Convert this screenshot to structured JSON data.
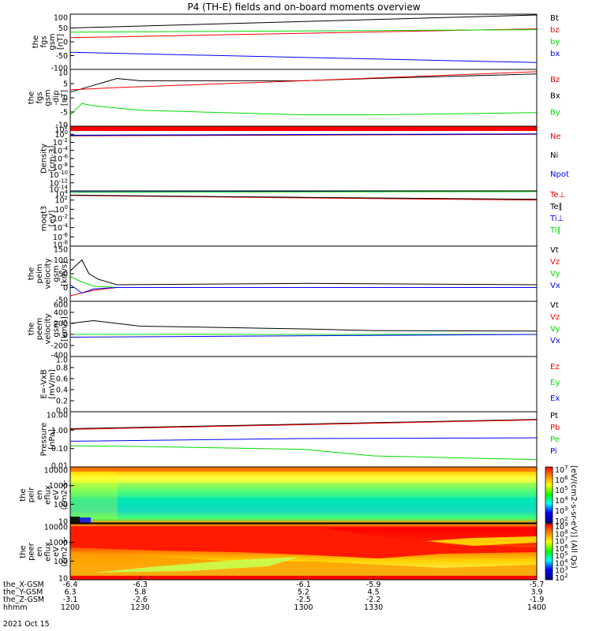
{
  "title": "P4 (TH-E) fields and on-board moments overview",
  "colors": {
    "black": "#000000",
    "red": "#ff0000",
    "green": "#00dd00",
    "blue": "#0000ff"
  },
  "chart_data": [
    {
      "type": "line",
      "ylabel": [
        "the",
        "fgs",
        "gsm",
        "[nT]"
      ],
      "ylim": [
        -100,
        100
      ],
      "yticks": [
        "100",
        "50",
        "0",
        "-50",
        "-100"
      ],
      "legend": [
        {
          "name": "Bt",
          "color": "black"
        },
        {
          "name": "bz",
          "color": "red"
        },
        {
          "name": "by",
          "color": "green"
        },
        {
          "name": "bx",
          "color": "blue"
        }
      ],
      "series": [
        {
          "name": "Bt",
          "color": "black",
          "x": [
            1200,
            1400
          ],
          "values": [
            50,
            97
          ]
        },
        {
          "name": "bz",
          "color": "red",
          "x": [
            1200,
            1400
          ],
          "values": [
            15,
            47
          ]
        },
        {
          "name": "by",
          "color": "green",
          "x": [
            1200,
            1400
          ],
          "values": [
            35,
            44
          ]
        },
        {
          "name": "bx",
          "color": "blue",
          "x": [
            1200,
            1400
          ],
          "values": [
            -38,
            -75
          ]
        }
      ]
    },
    {
      "type": "line",
      "ylabel": [
        "the",
        "fgs",
        "gsm",
        "-dip",
        "[nT]"
      ],
      "ylim": [
        -15,
        10
      ],
      "yticks": [
        "10",
        "5",
        "0",
        "-5",
        "-10"
      ],
      "legend": [
        {
          "name": "Bz",
          "color": "red",
          "y": -8
        },
        {
          "name": "Bx",
          "color": "black",
          "y": -5
        },
        {
          "name": "By",
          "color": "green",
          "y": -90
        }
      ],
      "series": [
        {
          "name": "Bx",
          "color": "black",
          "x": [
            1200,
            1210,
            1220,
            1230,
            1300,
            1330,
            1400
          ],
          "values": [
            0,
            3,
            6,
            5,
            5,
            6,
            8
          ]
        },
        {
          "name": "Bz",
          "color": "red",
          "x": [
            1200,
            1220,
            1300,
            1400
          ],
          "values": [
            1,
            2,
            5,
            9
          ]
        },
        {
          "name": "By",
          "color": "green",
          "x": [
            1200,
            1205,
            1210,
            1220,
            1230,
            1300,
            1330,
            1400
          ],
          "values": [
            -10,
            -5,
            -6,
            -7,
            -8,
            -10,
            -10,
            -9
          ]
        }
      ]
    },
    {
      "type": "line",
      "ylabel": [
        "Density",
        "[cm-3]"
      ],
      "ylim": [
        1e-14,
        100
      ],
      "log": true,
      "yticks": [
        "10^2",
        "10^0",
        "10^-2",
        "10^-4",
        "10^-6",
        "10^-8",
        "10^-10",
        "10^-12",
        "10^-14"
      ],
      "legend": [
        {
          "name": "Ne",
          "color": "red"
        },
        {
          "name": "Ni",
          "color": "black"
        },
        {
          "name": "Npot",
          "color": "blue"
        }
      ],
      "series": [
        {
          "name": "Ne",
          "color": "red",
          "x": [
            1200,
            1400
          ],
          "values": [
            0.4,
            1
          ]
        },
        {
          "name": "Ni",
          "color": "black",
          "x": [
            1200,
            1400
          ],
          "values": [
            0.5,
            1.1
          ]
        },
        {
          "name": "Npot",
          "color": "blue",
          "x": [
            1200,
            1400
          ],
          "values": [
            0.6,
            1.3
          ]
        }
      ]
    },
    {
      "type": "line",
      "ylabel": [
        "moqt3",
        "[eV]"
      ],
      "ylim": [
        1e-08,
        10000
      ],
      "log": true,
      "yticks": [
        "10^4",
        "10^2",
        "10^0",
        "10^-2",
        "10^-4",
        "10^-6",
        "10^-8"
      ],
      "legend": [
        {
          "name": "Te⊥",
          "color": "red"
        },
        {
          "name": "Te∥",
          "color": "black"
        },
        {
          "name": "Ti⊥",
          "color": "blue"
        },
        {
          "name": "Ti∥",
          "color": "green"
        }
      ],
      "series": [
        {
          "name": "Te⊥",
          "color": "red",
          "x": [
            1200,
            1300,
            1400
          ],
          "values": [
            1000,
            300,
            100
          ]
        },
        {
          "name": "Te∥",
          "color": "black",
          "x": [
            1200,
            1300,
            1400
          ],
          "values": [
            1200,
            400,
            150
          ]
        },
        {
          "name": "Ti⊥",
          "color": "blue",
          "x": [
            1200,
            1400
          ],
          "values": [
            6000,
            8000
          ]
        },
        {
          "name": "Ti∥",
          "color": "green",
          "x": [
            1200,
            1400
          ],
          "values": [
            5000,
            7000
          ]
        }
      ]
    },
    {
      "type": "line",
      "ylabel": [
        "the",
        "peim",
        "velocity",
        "gsm",
        "[km/s]"
      ],
      "ylim": [
        -50,
        150
      ],
      "yticks": [
        "150",
        "100",
        "50",
        "0",
        "-50"
      ],
      "legend": [
        {
          "name": "Vt",
          "color": "black"
        },
        {
          "name": "Vz",
          "color": "red"
        },
        {
          "name": "Vy",
          "color": "green"
        },
        {
          "name": "Vx",
          "color": "blue"
        }
      ],
      "series": [
        {
          "name": "Vt",
          "color": "black",
          "x": [
            1200,
            1205,
            1208,
            1212,
            1220,
            1300,
            1400
          ],
          "values": [
            60,
            100,
            50,
            30,
            10,
            15,
            10
          ]
        },
        {
          "name": "Vz",
          "color": "red",
          "x": [
            1200,
            1205,
            1210,
            1220,
            1400
          ],
          "values": [
            -30,
            -20,
            -10,
            0,
            0
          ]
        },
        {
          "name": "Vy",
          "color": "green",
          "x": [
            1200,
            1205,
            1210,
            1220,
            1400
          ],
          "values": [
            40,
            20,
            5,
            0,
            0
          ]
        },
        {
          "name": "Vx",
          "color": "blue",
          "x": [
            1200,
            1205,
            1210,
            1220,
            1400
          ],
          "values": [
            10,
            -20,
            -5,
            0,
            0
          ]
        }
      ]
    },
    {
      "type": "line",
      "ylabel": [
        "the",
        "peem",
        "velocity",
        "gsm",
        "[km/s]"
      ],
      "ylim": [
        -400,
        600
      ],
      "yticks": [
        "600",
        "400",
        "200",
        "0",
        "-200",
        "-400"
      ],
      "legend": [
        {
          "name": "Vt",
          "color": "black"
        },
        {
          "name": "Vz",
          "color": "red"
        },
        {
          "name": "Vy",
          "color": "green"
        },
        {
          "name": "Vx",
          "color": "blue"
        }
      ],
      "series": [
        {
          "name": "Vt",
          "color": "black",
          "x": [
            1200,
            1210,
            1230,
            1300,
            1330,
            1400
          ],
          "values": [
            200,
            250,
            150,
            100,
            70,
            60
          ]
        },
        {
          "name": "Vz",
          "color": "red",
          "x": [
            1200,
            1400
          ],
          "values": [
            0,
            0
          ]
        },
        {
          "name": "Vy",
          "color": "green",
          "x": [
            1200,
            1400
          ],
          "values": [
            0,
            0
          ]
        },
        {
          "name": "Vx",
          "color": "blue",
          "x": [
            1200,
            1400
          ],
          "values": [
            -50,
            0
          ]
        }
      ]
    },
    {
      "type": "line",
      "ylabel": [
        "E=-VxB",
        "[mV/m]"
      ],
      "ylim": [
        0,
        1
      ],
      "yticks": [
        "1.0",
        "0.8",
        "0.6",
        "0.4",
        "0.2",
        "0.0"
      ],
      "legend": [
        {
          "name": "Ez",
          "color": "red"
        },
        {
          "name": "Ey",
          "color": "green"
        },
        {
          "name": "Ex",
          "color": "blue"
        }
      ],
      "series": []
    },
    {
      "type": "line",
      "ylabel": [
        "Pressure",
        "[nPa]"
      ],
      "ylim": [
        0.01,
        10
      ],
      "log": true,
      "yticks": [
        "10.00",
        "1.00",
        "0.10",
        "0.01"
      ],
      "legend": [
        {
          "name": "Pt",
          "color": "black"
        },
        {
          "name": "Pb",
          "color": "red"
        },
        {
          "name": "Pe",
          "color": "green"
        },
        {
          "name": "Pi",
          "color": "blue"
        }
      ],
      "series": [
        {
          "name": "Pt",
          "color": "black",
          "x": [
            1200,
            1400
          ],
          "values": [
            1.2,
            3.8
          ]
        },
        {
          "name": "Pb",
          "color": "red",
          "x": [
            1200,
            1400
          ],
          "values": [
            1.1,
            3.6
          ]
        },
        {
          "name": "Pi",
          "color": "blue",
          "x": [
            1200,
            1300,
            1400
          ],
          "values": [
            0.25,
            0.35,
            0.38
          ]
        },
        {
          "name": "Pe",
          "color": "green",
          "x": [
            1200,
            1230,
            1300,
            1330,
            1400
          ],
          "values": [
            0.14,
            0.13,
            0.09,
            0.04,
            0.025
          ]
        }
      ]
    },
    {
      "type": "heatmap",
      "ylabel": [
        "the",
        "peir",
        "en",
        "eflux",
        "eV",
        "(cm2-s-",
        "sr-eV)"
      ],
      "ylim": [
        5,
        30000
      ],
      "log": true,
      "yticks": [
        "10000",
        "1000",
        "100",
        "10"
      ],
      "colorbar": [
        "10^7",
        "10^6",
        "10^5",
        "10^4",
        "10^3",
        "10^2"
      ],
      "colorbar_label": "[eV/(cm2-s-sr-eV)] (All Qs)"
    },
    {
      "type": "heatmap",
      "ylabel": [
        "the",
        "peer",
        "en",
        "eflux",
        "eV",
        "(cm2-s-",
        "sr-eV)"
      ],
      "ylim": [
        5,
        30000
      ],
      "log": true,
      "yticks": [
        "10000",
        "1000",
        "100",
        "10"
      ],
      "colorbar": [
        "10^9",
        "10^8",
        "10^7",
        "10^6",
        "10^5",
        "10^4",
        "10^3",
        "10^2"
      ],
      "colorbar_label": "[eV/(cm2-s-sr-eV)]"
    }
  ],
  "xaxis": {
    "rows": [
      {
        "label": "the_X-GSM",
        "values": [
          "-6.4",
          "-6.3",
          "-6.1",
          "-5.9",
          "-5.7"
        ]
      },
      {
        "label": "the_Y-GSM",
        "values": [
          "6.3",
          "5.8",
          "5.2",
          "4.5",
          "3.9"
        ]
      },
      {
        "label": "the_Z-GSM",
        "values": [
          "-3.1",
          "-2.6",
          "-2.5",
          "-2.2",
          "-1.9"
        ]
      },
      {
        "label": "hhmm",
        "values": [
          "1200",
          "1230",
          "1300",
          "1330",
          "1400"
        ]
      }
    ],
    "date": "2021 Oct 15"
  }
}
